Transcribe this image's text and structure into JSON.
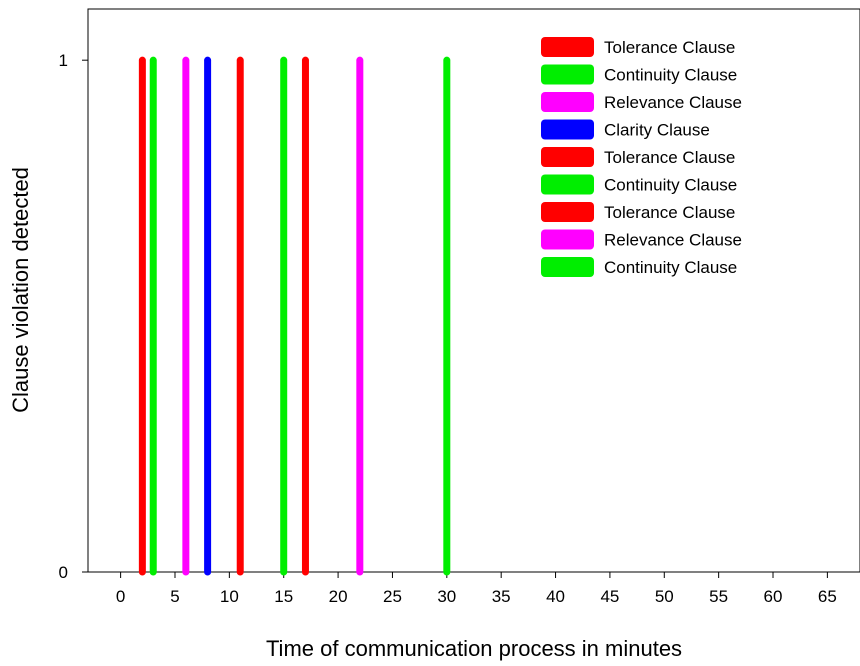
{
  "chart_data": {
    "type": "bar",
    "xlabel": "Time of communication process in minutes",
    "ylabel": "Clause violation detected",
    "xlim": [
      -3,
      68
    ],
    "ylim": [
      0,
      1.1
    ],
    "x_ticks": [
      0,
      5,
      10,
      15,
      20,
      25,
      30,
      35,
      40,
      45,
      50,
      55,
      60,
      65
    ],
    "y_ticks": [
      0,
      1
    ],
    "grid": false,
    "legend_position": "top-right",
    "series": [
      {
        "name": "Tolerance Clause",
        "x": [
          2
        ],
        "values": [
          1
        ],
        "color": "#ff0000"
      },
      {
        "name": "Continuity Clause",
        "x": [
          3
        ],
        "values": [
          1
        ],
        "color": "#00ee00"
      },
      {
        "name": "Relevance Clause",
        "x": [
          6
        ],
        "values": [
          1
        ],
        "color": "#ff00ff"
      },
      {
        "name": "Clarity Clause",
        "x": [
          8
        ],
        "values": [
          1
        ],
        "color": "#0000ff"
      },
      {
        "name": "Tolerance Clause",
        "x": [
          11
        ],
        "values": [
          1
        ],
        "color": "#ff0000"
      },
      {
        "name": "Continuity Clause",
        "x": [
          15
        ],
        "values": [
          1
        ],
        "color": "#00ee00"
      },
      {
        "name": "Tolerance Clause",
        "x": [
          17
        ],
        "values": [
          1
        ],
        "color": "#ff0000"
      },
      {
        "name": "Relevance Clause",
        "x": [
          22
        ],
        "values": [
          1
        ],
        "color": "#ff00ff"
      },
      {
        "name": "Continuity Clause",
        "x": [
          30
        ],
        "values": [
          1
        ],
        "color": "#00ee00"
      }
    ]
  }
}
